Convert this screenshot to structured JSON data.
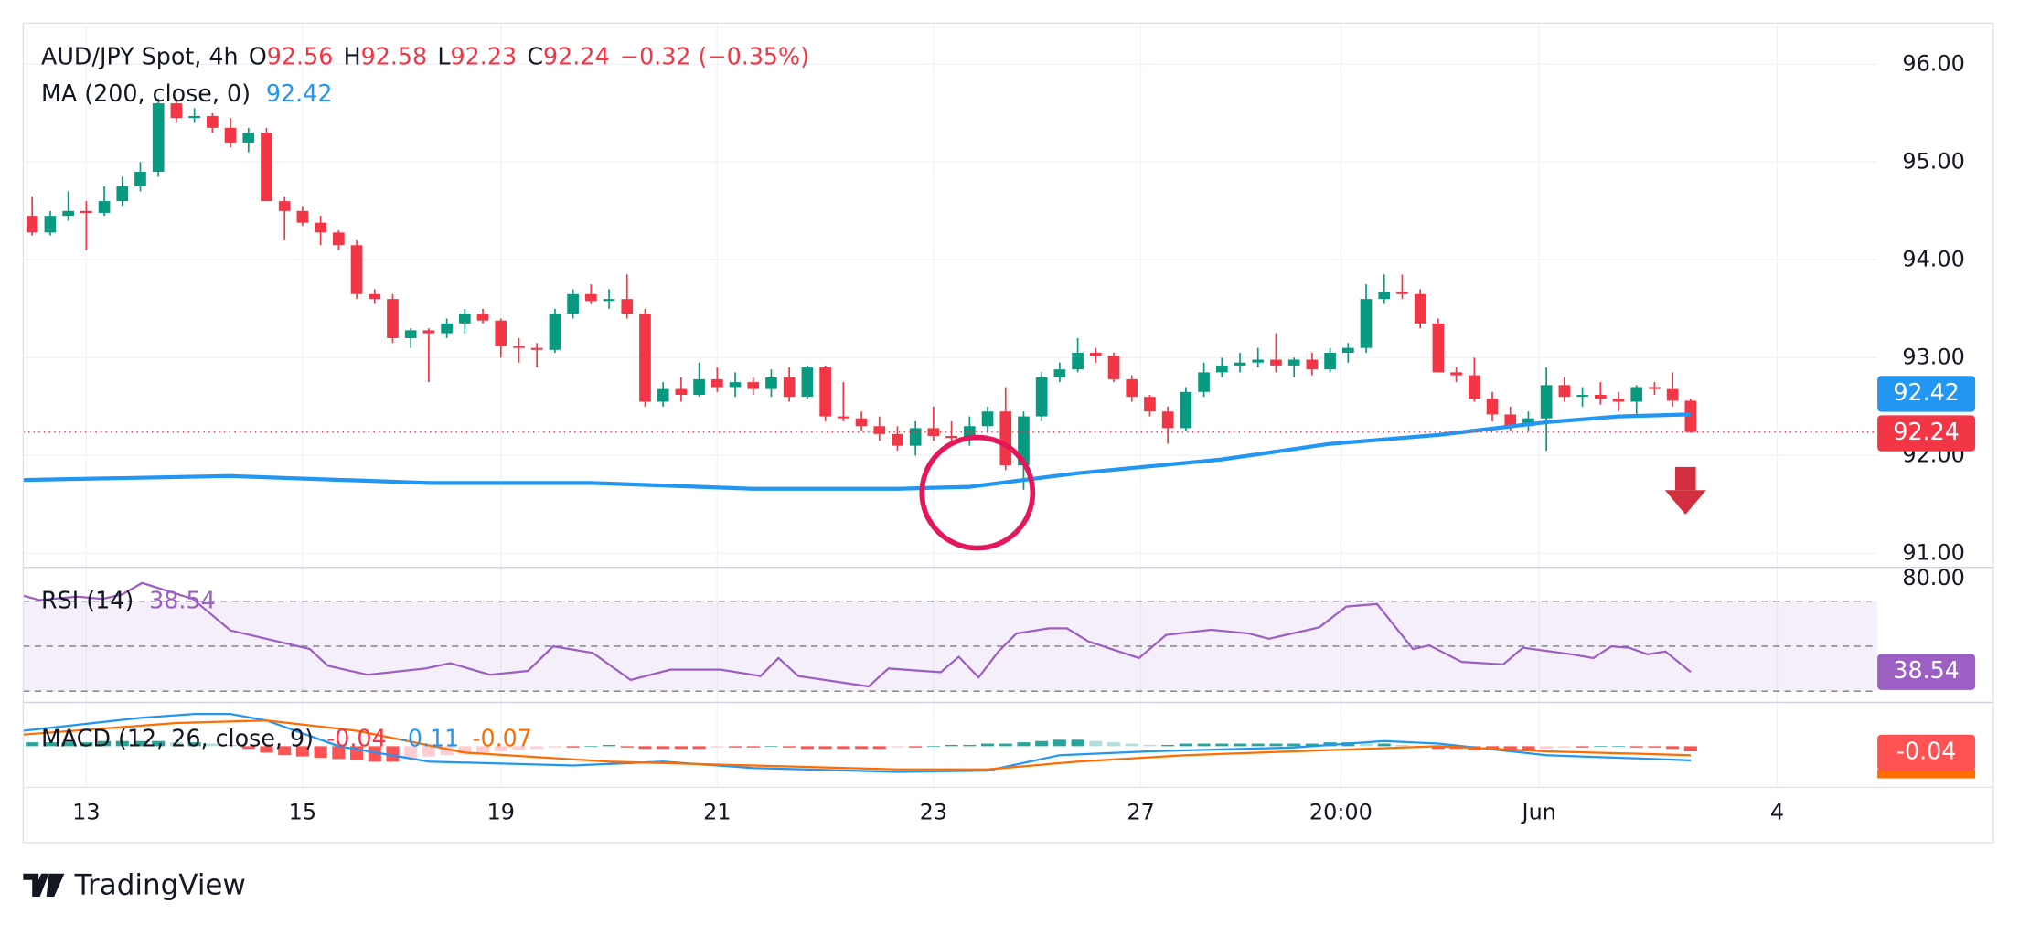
{
  "chart_data": {
    "type": "candlestick",
    "title": "AUD/JPY Spot, 4h",
    "ohlc_labels": [
      "O",
      "H",
      "L",
      "C"
    ],
    "change_label": "−0.32 (−0.35%)",
    "up_color": "#089981",
    "down_color": "#f23645",
    "ylim": [
      90.87,
      96.42
    ],
    "yticks": [
      {
        "value": 91,
        "label": "91.00"
      },
      {
        "value": 92,
        "label": "92.00"
      },
      {
        "value": 93,
        "label": "93.00"
      },
      {
        "value": 94,
        "label": "94.00"
      },
      {
        "value": 95,
        "label": "95.00"
      },
      {
        "value": 96,
        "label": "96.00"
      }
    ],
    "xlim": [
      -0.5,
      102.36
    ],
    "xticks": [
      {
        "value": 3,
        "label": "13"
      },
      {
        "value": 15,
        "label": "15"
      },
      {
        "value": 26,
        "label": "19"
      },
      {
        "value": 38,
        "label": "21"
      },
      {
        "value": 50,
        "label": "23"
      },
      {
        "value": 61.5,
        "label": "27"
      },
      {
        "value": 72.6,
        "label": "20:00"
      },
      {
        "value": 83.6,
        "label": "Jun"
      },
      {
        "value": 96.8,
        "label": "4"
      }
    ],
    "grid": true,
    "ohlc": [
      [
        94.45,
        94.65,
        94.25,
        94.28
      ],
      [
        94.28,
        94.5,
        94.25,
        94.45
      ],
      [
        94.45,
        94.7,
        94.4,
        94.5
      ],
      [
        94.5,
        94.6,
        94.1,
        94.48
      ],
      [
        94.48,
        94.75,
        94.45,
        94.6
      ],
      [
        94.6,
        94.85,
        94.55,
        94.75
      ],
      [
        94.75,
        95.0,
        94.7,
        94.9
      ],
      [
        94.9,
        95.65,
        94.85,
        95.6
      ],
      [
        95.6,
        95.65,
        95.4,
        95.45
      ],
      [
        95.45,
        95.55,
        95.4,
        95.47
      ],
      [
        95.47,
        95.5,
        95.3,
        95.35
      ],
      [
        95.35,
        95.45,
        95.15,
        95.2
      ],
      [
        95.2,
        95.35,
        95.1,
        95.3
      ],
      [
        95.3,
        95.35,
        94.6,
        94.6
      ],
      [
        94.6,
        94.65,
        94.2,
        94.5
      ],
      [
        94.5,
        94.55,
        94.35,
        94.38
      ],
      [
        94.38,
        94.45,
        94.15,
        94.28
      ],
      [
        94.28,
        94.3,
        94.1,
        94.15
      ],
      [
        94.15,
        94.2,
        93.6,
        93.65
      ],
      [
        93.65,
        93.7,
        93.55,
        93.6
      ],
      [
        93.6,
        93.65,
        93.15,
        93.2
      ],
      [
        93.2,
        93.3,
        93.1,
        93.28
      ],
      [
        93.28,
        93.3,
        92.75,
        93.25
      ],
      [
        93.25,
        93.4,
        93.2,
        93.35
      ],
      [
        93.35,
        93.5,
        93.25,
        93.45
      ],
      [
        93.45,
        93.5,
        93.35,
        93.38
      ],
      [
        93.38,
        93.4,
        93.0,
        93.12
      ],
      [
        93.12,
        93.2,
        92.95,
        93.1
      ],
      [
        93.1,
        93.15,
        92.9,
        93.08
      ],
      [
        93.08,
        93.5,
        93.05,
        93.45
      ],
      [
        93.45,
        93.7,
        93.4,
        93.65
      ],
      [
        93.65,
        93.75,
        93.55,
        93.58
      ],
      [
        93.58,
        93.7,
        93.5,
        93.6
      ],
      [
        93.6,
        93.85,
        93.4,
        93.45
      ],
      [
        93.45,
        93.5,
        92.5,
        92.55
      ],
      [
        92.55,
        92.75,
        92.5,
        92.68
      ],
      [
        92.68,
        92.8,
        92.55,
        92.62
      ],
      [
        92.62,
        92.95,
        92.6,
        92.78
      ],
      [
        92.78,
        92.9,
        92.65,
        92.7
      ],
      [
        92.7,
        92.85,
        92.6,
        92.75
      ],
      [
        92.75,
        92.8,
        92.62,
        92.68
      ],
      [
        92.68,
        92.88,
        92.6,
        92.8
      ],
      [
        92.8,
        92.9,
        92.55,
        92.6
      ],
      [
        92.6,
        92.92,
        92.58,
        92.9
      ],
      [
        92.9,
        92.92,
        92.35,
        92.4
      ],
      [
        92.4,
        92.75,
        92.35,
        92.38
      ],
      [
        92.38,
        92.45,
        92.25,
        92.3
      ],
      [
        92.3,
        92.4,
        92.15,
        92.22
      ],
      [
        92.22,
        92.3,
        92.05,
        92.1
      ],
      [
        92.1,
        92.35,
        92.0,
        92.28
      ],
      [
        92.28,
        92.5,
        92.15,
        92.2
      ],
      [
        92.2,
        92.35,
        92.1,
        92.18
      ],
      [
        92.18,
        92.4,
        92.1,
        92.3
      ],
      [
        92.3,
        92.5,
        92.25,
        92.45
      ],
      [
        92.45,
        92.7,
        91.85,
        91.9
      ],
      [
        91.9,
        92.45,
        91.65,
        92.4
      ],
      [
        92.4,
        92.85,
        92.35,
        92.8
      ],
      [
        92.8,
        92.95,
        92.75,
        92.88
      ],
      [
        92.88,
        93.2,
        92.85,
        93.05
      ],
      [
        93.05,
        93.1,
        92.95,
        93.02
      ],
      [
        93.02,
        93.05,
        92.75,
        92.78
      ],
      [
        92.78,
        92.82,
        92.55,
        92.6
      ],
      [
        92.6,
        92.62,
        92.4,
        92.45
      ],
      [
        92.45,
        92.5,
        92.12,
        92.28
      ],
      [
        92.28,
        92.7,
        92.25,
        92.65
      ],
      [
        92.65,
        92.95,
        92.6,
        92.85
      ],
      [
        92.85,
        93.0,
        92.8,
        92.92
      ],
      [
        92.92,
        93.05,
        92.85,
        92.95
      ],
      [
        92.95,
        93.1,
        92.9,
        92.98
      ],
      [
        92.98,
        93.25,
        92.85,
        92.92
      ],
      [
        92.92,
        93.0,
        92.8,
        92.98
      ],
      [
        92.98,
        93.05,
        92.82,
        92.88
      ],
      [
        92.88,
        93.1,
        92.85,
        93.05
      ],
      [
        93.05,
        93.15,
        92.95,
        93.1
      ],
      [
        93.1,
        93.75,
        93.05,
        93.6
      ],
      [
        93.6,
        93.85,
        93.55,
        93.67
      ],
      [
        93.67,
        93.85,
        93.6,
        93.65
      ],
      [
        93.65,
        93.7,
        93.3,
        93.35
      ],
      [
        93.35,
        93.4,
        92.85,
        92.85
      ],
      [
        92.85,
        92.9,
        92.75,
        92.82
      ],
      [
        92.82,
        93.0,
        92.55,
        92.58
      ],
      [
        92.58,
        92.65,
        92.35,
        92.42
      ],
      [
        92.42,
        92.5,
        92.25,
        92.3
      ],
      [
        92.3,
        92.45,
        92.25,
        92.38
      ],
      [
        92.38,
        92.9,
        92.05,
        92.72
      ],
      [
        92.72,
        92.8,
        92.55,
        92.6
      ],
      [
        92.6,
        92.7,
        92.5,
        92.62
      ],
      [
        92.62,
        92.75,
        92.52,
        92.58
      ],
      [
        92.58,
        92.65,
        92.45,
        92.55
      ],
      [
        92.55,
        92.72,
        92.4,
        92.7
      ],
      [
        92.7,
        92.75,
        92.62,
        92.68
      ],
      [
        92.68,
        92.85,
        92.5,
        92.56
      ],
      [
        92.56,
        92.58,
        92.23,
        92.24
      ]
    ],
    "ma": {
      "name": "MA (200, close, 0)",
      "color": "#2196f3",
      "x": [
        -0.5,
        11,
        22,
        31,
        40,
        48,
        52,
        58,
        66,
        72,
        78,
        84,
        88,
        92
      ],
      "values": [
        91.75,
        91.79,
        91.72,
        91.72,
        91.66,
        91.66,
        91.68,
        91.82,
        91.96,
        92.12,
        92.21,
        92.34,
        92.4,
        92.42
      ]
    },
    "rsi": {
      "name": "RSI (14)",
      "color": "#9c5fc4",
      "ylim": [
        25,
        85
      ],
      "yticks": [
        {
          "value": 80,
          "label": "80.00"
        }
      ],
      "levels": [
        70,
        50,
        30
      ],
      "x": [
        -0.5,
        0.4,
        2.5,
        3.9,
        5,
        6.1,
        8.9,
        11,
        15.4,
        16.4,
        18.6,
        21.8,
        23.2,
        25.4,
        27.5,
        28.9,
        31.1,
        33.2,
        35.4,
        38.2,
        40.4,
        41.4,
        42.5,
        46.4,
        47.5,
        50.4,
        51.4,
        52.5,
        53.6,
        54.6,
        56.4,
        57.4,
        58.6,
        61.4,
        62.9,
        65.4,
        67.5,
        68.6,
        71.4,
        72.9,
        74.6,
        76.6,
        77.5,
        79.3,
        81.6,
        82.7,
        85.4,
        86.6,
        87.6,
        88.6,
        89.6,
        90.6,
        92
      ],
      "values": [
        72.4,
        70.5,
        72,
        71,
        73,
        78.1,
        71,
        57,
        48.7,
        41.3,
        37.3,
        40.1,
        42.4,
        37.3,
        39,
        49.9,
        47,
        35,
        39.6,
        39.6,
        36.7,
        44.7,
        36.7,
        32.1,
        40.1,
        38.4,
        45.3,
        36.1,
        47.6,
        55.6,
        57.9,
        57.9,
        52.1,
        44.7,
        55,
        57.3,
        55.6,
        53.3,
        58.4,
        67.6,
        68.7,
        48.7,
        50.4,
        43,
        41.9,
        49.3,
        46.4,
        44.7,
        49.9,
        49.3,
        46.4,
        47.6,
        38.54
      ]
    },
    "macd": {
      "name": "MACD (12, 26, close, 9)",
      "ylim": [
        -0.32,
        0.32
      ],
      "histogram": {
        "colors": [
          "#26a69a",
          "#b2dfdb",
          "#ff5252",
          "#ffcdd2"
        ],
        "values": [
          0.03,
          0.03,
          0.03,
          0.03,
          0.04,
          0.04,
          0.04,
          0.04,
          0.03,
          0.03,
          0.02,
          0.01,
          -0.02,
          -0.05,
          -0.07,
          -0.08,
          -0.09,
          -0.1,
          -0.11,
          -0.12,
          -0.12,
          -0.1,
          -0.08,
          -0.07,
          -0.06,
          -0.05,
          -0.04,
          -0.03,
          -0.02,
          -0.01,
          -0.01,
          0,
          0.01,
          -0.01,
          -0.02,
          -0.02,
          -0.02,
          -0.02,
          -0.01,
          -0.01,
          -0.01,
          0,
          -0.01,
          -0.02,
          -0.02,
          -0.02,
          -0.02,
          -0.02,
          -0.01,
          -0.01,
          0,
          0.01,
          0.01,
          0.02,
          0.02,
          0.03,
          0.04,
          0.05,
          0.05,
          0.04,
          0.03,
          0.02,
          0.01,
          0.01,
          0.02,
          0.02,
          0.02,
          0.02,
          0.02,
          0.02,
          0.02,
          0.02,
          0.03,
          0.03,
          0.02,
          0.02,
          0.01,
          -0.01,
          -0.02,
          -0.02,
          -0.03,
          -0.03,
          -0.03,
          -0.03,
          -0.02,
          -0.01,
          -0.01,
          0,
          0,
          -0.01,
          -0.01,
          -0.02,
          -0.04
        ]
      },
      "macd": {
        "color": "#2196f3",
        "x": [
          -0.5,
          6,
          9,
          11,
          13,
          17,
          22,
          30,
          35,
          40,
          48,
          53,
          57,
          62,
          70,
          75,
          78,
          84,
          92
        ],
        "values": [
          0.12,
          0.22,
          0.25,
          0.25,
          0.2,
          0.0,
          -0.12,
          -0.15,
          -0.12,
          -0.17,
          -0.2,
          -0.19,
          -0.07,
          -0.04,
          -0.01,
          0.04,
          0.02,
          -0.07,
          -0.11
        ]
      },
      "signal": {
        "color": "#ff6d00",
        "x": [
          -0.5,
          8,
          13,
          18,
          24,
          32,
          40,
          48,
          53,
          58,
          64,
          72,
          78,
          84,
          92
        ],
        "values": [
          0.09,
          0.18,
          0.2,
          0.12,
          -0.05,
          -0.12,
          -0.15,
          -0.18,
          -0.18,
          -0.12,
          -0.07,
          -0.03,
          0.0,
          -0.04,
          -0.07
        ]
      }
    },
    "watermark": "TradingView"
  }
}
